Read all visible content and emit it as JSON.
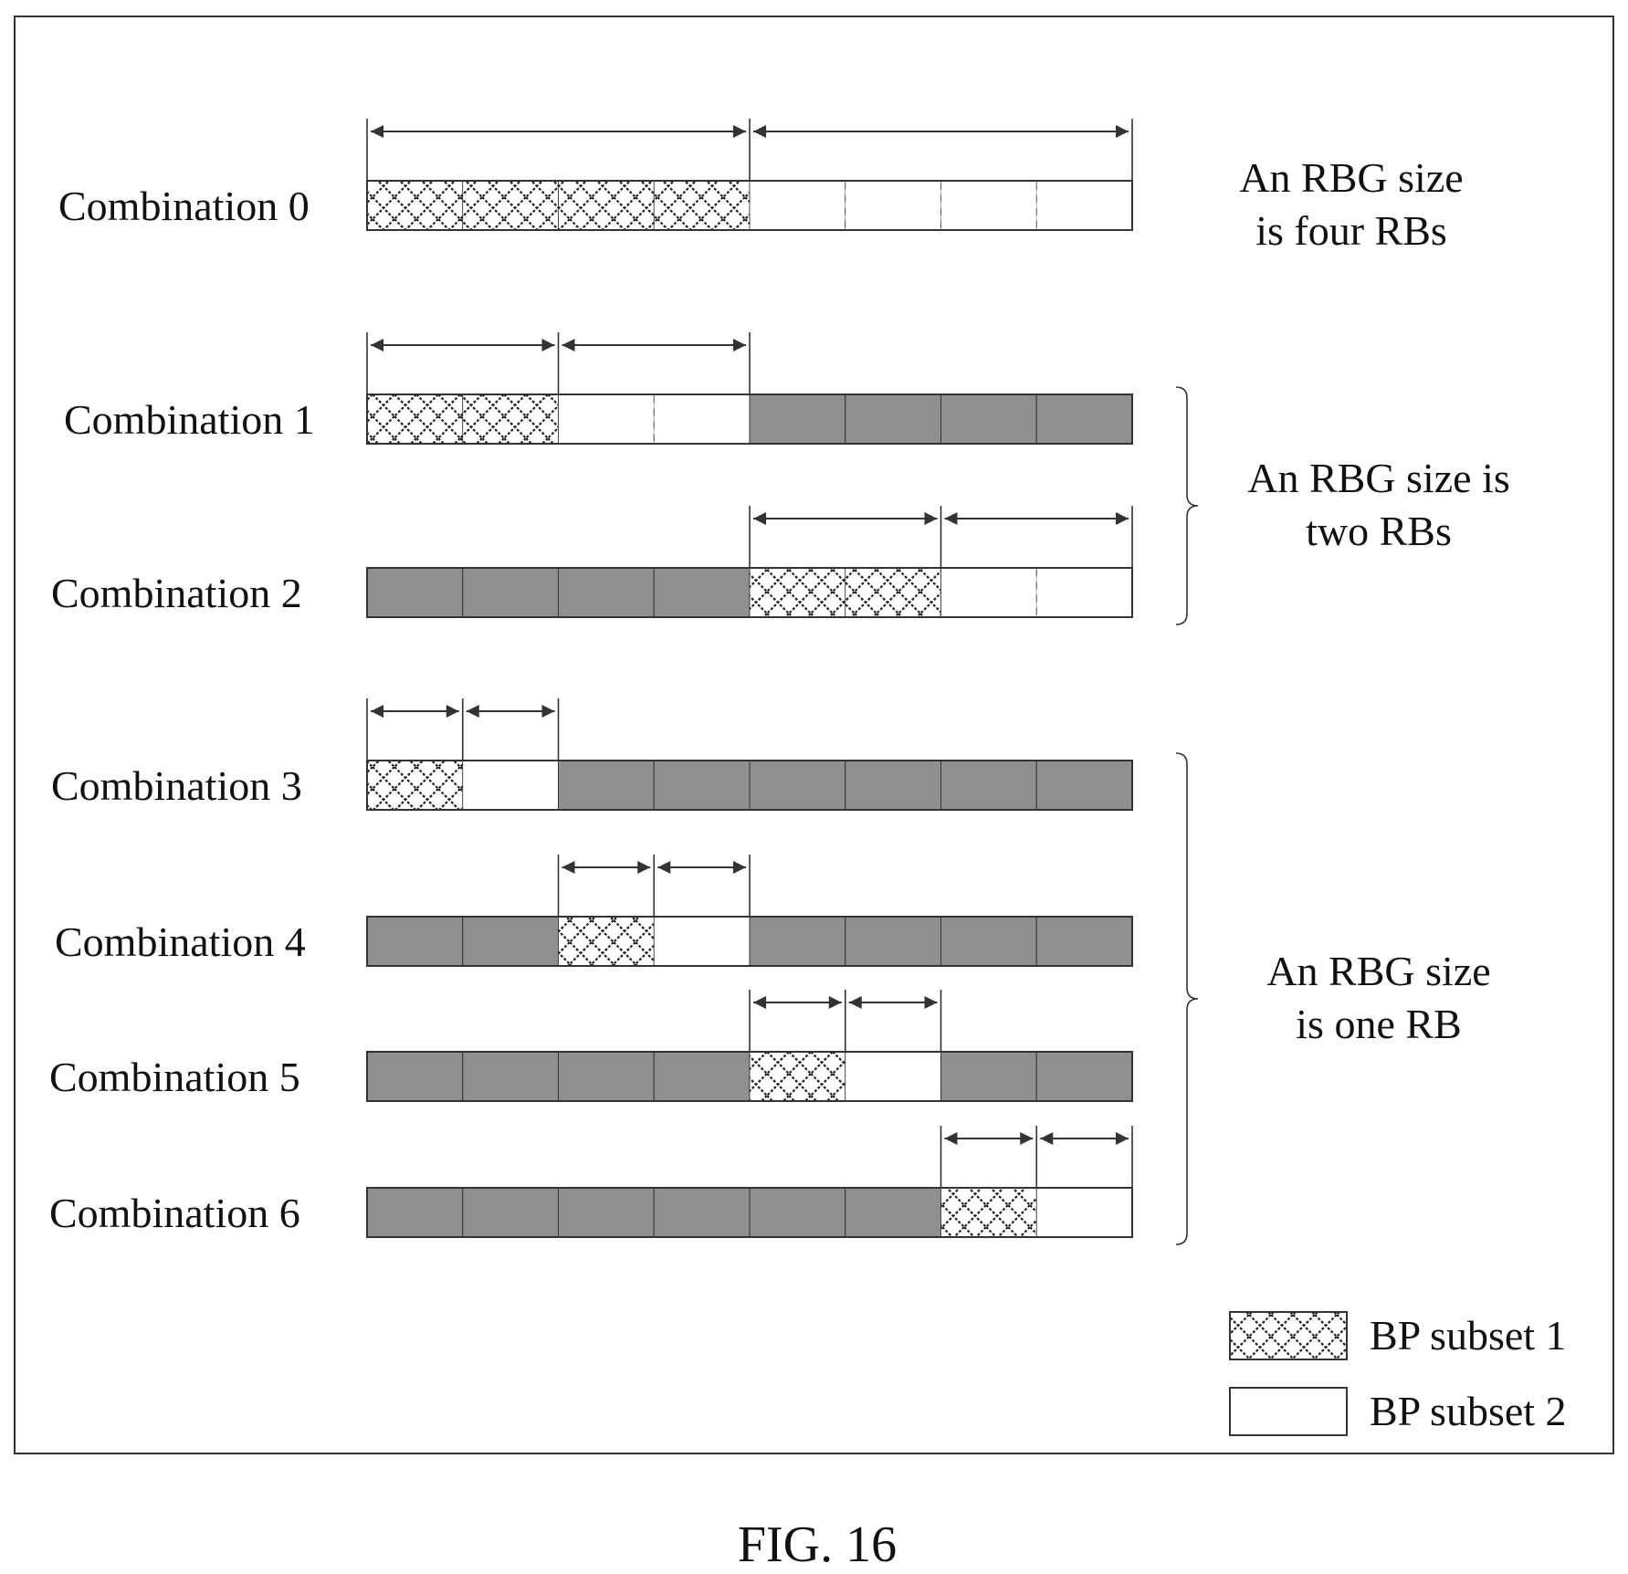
{
  "figure_caption": "FIG. 16",
  "colors": {
    "occupied": "#8f8f8f",
    "outline": "#333333",
    "text": "#111111"
  },
  "legend": [
    {
      "label": "BP subset 1",
      "pattern": "crosshatch"
    },
    {
      "label": "BP subset 2",
      "pattern": "blank"
    }
  ],
  "groups": [
    {
      "lines": [
        "An RBG size",
        "is four RBs"
      ],
      "rows": [
        0
      ]
    },
    {
      "lines": [
        "An RBG size is",
        "two RBs"
      ],
      "rows": [
        1,
        2
      ]
    },
    {
      "lines": [
        "An RBG size",
        "is one RB"
      ],
      "rows": [
        3,
        4,
        5,
        6
      ]
    }
  ],
  "combinations": [
    {
      "label": "Combination 0",
      "cells": [
        "S1",
        "S1",
        "S1",
        "S1",
        "S2",
        "S2",
        "S2",
        "S2"
      ]
    },
    {
      "label": "Combination 1",
      "cells": [
        "S1",
        "S1",
        "S2",
        "S2",
        "X",
        "X",
        "X",
        "X"
      ]
    },
    {
      "label": "Combination 2",
      "cells": [
        "X",
        "X",
        "X",
        "X",
        "S1",
        "S1",
        "S2",
        "S2"
      ]
    },
    {
      "label": "Combination 3",
      "cells": [
        "S1",
        "S2",
        "X",
        "X",
        "X",
        "X",
        "X",
        "X"
      ]
    },
    {
      "label": "Combination 4",
      "cells": [
        "X",
        "X",
        "S1",
        "S2",
        "X",
        "X",
        "X",
        "X"
      ]
    },
    {
      "label": "Combination 5",
      "cells": [
        "X",
        "X",
        "X",
        "X",
        "S1",
        "S2",
        "X",
        "X"
      ]
    },
    {
      "label": "Combination 6",
      "cells": [
        "X",
        "X",
        "X",
        "X",
        "X",
        "X",
        "S1",
        "S2"
      ]
    }
  ]
}
